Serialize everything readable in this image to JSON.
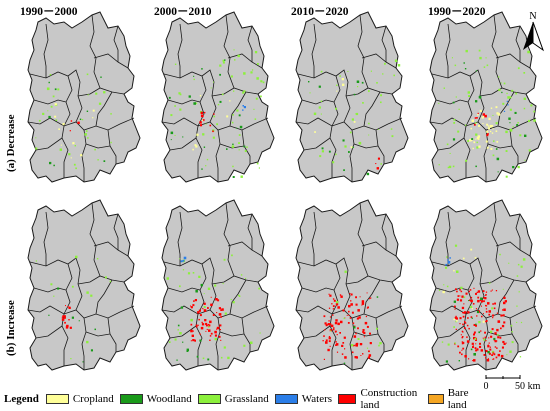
{
  "periods": [
    "1990－2000",
    "2000－2010",
    "2010－2020",
    "1990－2020"
  ],
  "rows": [
    {
      "label": "(a) Decrease"
    },
    {
      "label": "(b) Increase"
    }
  ],
  "legend": {
    "title": "Legend",
    "items": [
      {
        "label": "Cropland",
        "color": "#ffff99"
      },
      {
        "label": "Woodland",
        "color": "#1a9a1a"
      },
      {
        "label": "Grassland",
        "color": "#8cf03c"
      },
      {
        "label": "Waters",
        "color": "#2b7ee8"
      },
      {
        "label": "Construction land",
        "color": "#ff0000"
      },
      {
        "label": "Bare land",
        "color": "#f5a623"
      }
    ]
  },
  "north_arrow": {
    "label": "N"
  },
  "scale_bar": {
    "start": "0",
    "end": "50",
    "unit": "km"
  },
  "map_style": {
    "base_fill": "#c8c8c8",
    "boundary": "#1a1a1a"
  }
}
